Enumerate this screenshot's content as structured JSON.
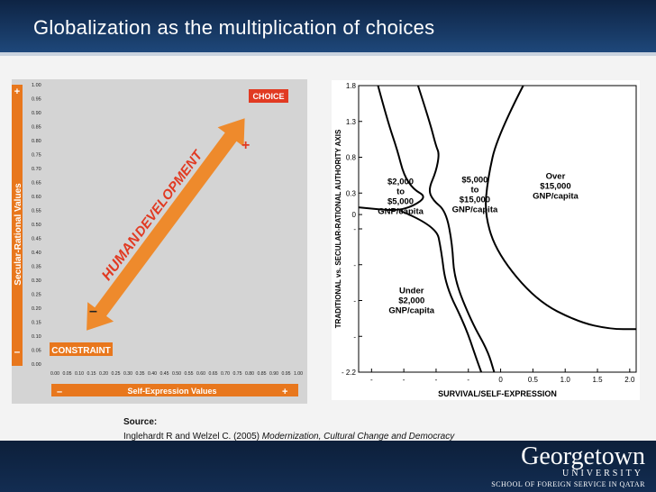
{
  "slide": {
    "title": "Globalization as the multiplication of choices"
  },
  "source": {
    "label": "Source:",
    "text_plain": "Inglehardt R and Welzel C. (2005) ",
    "text_italic": "Modernization, Cultural Change and Democracy"
  },
  "logo": {
    "main": "Georgetown",
    "sub": "UNIVERSITY",
    "school": "SCHOOL OF FOREIGN SERVICE IN QATAR"
  },
  "colors": {
    "header_bg": "#183a66",
    "orange_accent": "#e8771d",
    "choice_bg": "#e13a22",
    "panel_bg": "#d4d4d4"
  },
  "chart_data": [
    {
      "type": "scatter",
      "title": "",
      "xlabel": "Self-Expression Values",
      "ylabel": "Secular-Rational Values",
      "xlim": [
        0,
        1
      ],
      "ylim": [
        0,
        1
      ],
      "x_ticks": [
        "0.00",
        "0.05",
        "0.10",
        "0.15",
        "0.20",
        "0.25",
        "0.30",
        "0.35",
        "0.40",
        "0.45",
        "0.50",
        "0.55",
        "0.60",
        "0.65",
        "0.70",
        "0.75",
        "0.80",
        "0.85",
        "0.90",
        "0.95",
        "1.00"
      ],
      "y_ticks": [
        "0.00",
        "0.05",
        "0.10",
        "0.15",
        "0.20",
        "0.25",
        "0.30",
        "0.35",
        "0.40",
        "0.45",
        "0.50",
        "0.55",
        "0.60",
        "0.65",
        "0.70",
        "0.75",
        "0.80",
        "0.85",
        "0.90",
        "0.95",
        "1.00"
      ],
      "x_minus": "–",
      "x_plus": "+",
      "y_minus": "–",
      "y_plus": "+",
      "labels": {
        "choice": "CHOICE",
        "constraint": "CONSTRAINT",
        "human": "HUMAN",
        "development": "DEVELOPMENT",
        "arrow_plus": "+",
        "arrow_minus": "–"
      },
      "arrow": {
        "from": [
          0.13,
          0.12
        ],
        "to": [
          0.78,
          0.88
        ]
      }
    },
    {
      "type": "line",
      "title": "",
      "xlabel": "SURVIVAL/SELF-EXPRESSION",
      "ylabel": "TRADITIONAL vs. SECULAR-RATIONAL AUTHORITY AXIS",
      "xlim": [
        -2.2,
        2.1
      ],
      "ylim": [
        -2.2,
        1.8
      ],
      "x_ticks": [
        {
          "v": -2.0,
          "label": "-"
        },
        {
          "v": -1.5,
          "label": "-"
        },
        {
          "v": -1.0,
          "label": "-"
        },
        {
          "v": -0.5,
          "label": "-"
        },
        {
          "v": 0,
          "label": "0"
        },
        {
          "v": 0.5,
          "label": "0.5"
        },
        {
          "v": 1.0,
          "label": "1.0"
        },
        {
          "v": 1.5,
          "label": "1.5"
        },
        {
          "v": 2.0,
          "label": "2.0"
        }
      ],
      "y_ticks": [
        {
          "v": 1.8,
          "label": "1.8"
        },
        {
          "v": 1.3,
          "label": "1.3"
        },
        {
          "v": 0.8,
          "label": "0.8"
        },
        {
          "v": 0.3,
          "label": "0.3"
        },
        {
          "v": 0,
          "label": "0"
        },
        {
          "v": -0.2,
          "label": "-"
        },
        {
          "v": -0.7,
          "label": "-"
        },
        {
          "v": -1.2,
          "label": "-"
        },
        {
          "v": -1.7,
          "label": "-"
        },
        {
          "v": -2.2,
          "label": "- 2.2"
        }
      ],
      "regions": [
        {
          "name": "low-mid",
          "lines": [
            "$2,000",
            "to",
            "$5,000",
            "GNP/capita"
          ],
          "at": [
            -1.55,
            0.42
          ]
        },
        {
          "name": "mid",
          "lines": [
            "$5,000",
            "to",
            "$15,000",
            "GNP/capita"
          ],
          "at": [
            -0.4,
            0.45
          ]
        },
        {
          "name": "high",
          "lines": [
            "Over",
            "$15,000",
            "GNP/capita"
          ],
          "at": [
            0.85,
            0.5
          ]
        },
        {
          "name": "low",
          "lines": [
            "Under",
            "$2,000",
            "GNP/capita"
          ],
          "at": [
            -1.38,
            -1.1
          ]
        }
      ],
      "series": [
        {
          "points": [
            [
              -1.9,
              1.8
            ],
            [
              -1.75,
              1.3
            ],
            [
              -1.6,
              0.9
            ],
            [
              -1.5,
              0.55
            ],
            [
              -1.35,
              0.35
            ],
            [
              -1.15,
              0.25
            ],
            [
              -1.35,
              0.12
            ],
            [
              -1.62,
              0.05
            ],
            [
              -2.2,
              0.1
            ]
          ]
        },
        {
          "points": [
            [
              -1.28,
              1.8
            ],
            [
              -1.1,
              1.3
            ],
            [
              -1.0,
              0.95
            ],
            [
              -0.95,
              0.85
            ],
            [
              -1.0,
              0.6
            ],
            [
              -1.12,
              0.35
            ],
            [
              -1.05,
              0.2
            ],
            [
              -0.85,
              0.05
            ],
            [
              -0.75,
              -0.4
            ],
            [
              -0.72,
              -0.9
            ],
            [
              -0.45,
              -1.5
            ],
            [
              -0.2,
              -1.9
            ],
            [
              -0.1,
              -2.2
            ]
          ]
        },
        {
          "points": [
            [
              -1.55,
              0.05
            ],
            [
              -1.0,
              -0.15
            ],
            [
              -0.92,
              -0.5
            ],
            [
              -0.85,
              -1.0
            ],
            [
              -0.55,
              -1.55
            ],
            [
              -0.38,
              -2.0
            ],
            [
              -0.3,
              -2.2
            ]
          ]
        },
        {
          "points": [
            [
              0.35,
              1.8
            ],
            [
              -0.05,
              1.1
            ],
            [
              -0.2,
              0.5
            ],
            [
              -0.25,
              0.0
            ],
            [
              -0.05,
              -0.55
            ],
            [
              0.55,
              -1.2
            ],
            [
              1.2,
              -1.5
            ],
            [
              1.7,
              -1.6
            ],
            [
              2.1,
              -1.6
            ]
          ]
        }
      ]
    }
  ]
}
